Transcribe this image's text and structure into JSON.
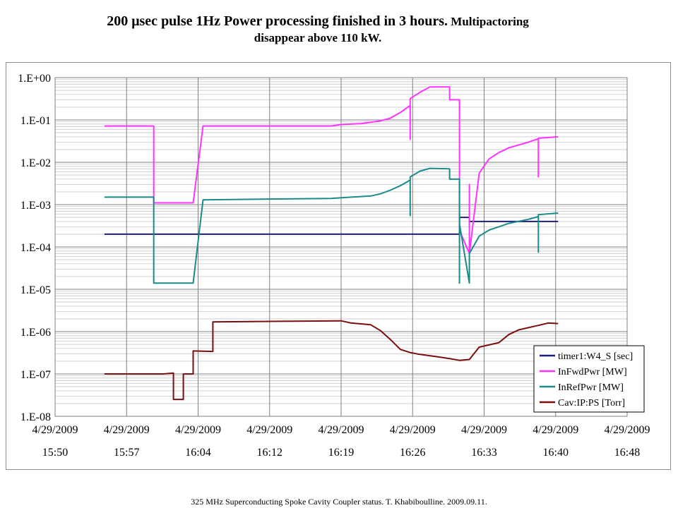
{
  "header": {
    "title_main": "200 μsec pulse 1Hz  Power processing finished in 3 hours.",
    "title_tail": " Multipactoring",
    "title_line2": "disappear above 110 kW."
  },
  "footer": {
    "text": "325 MHz Superconducting Spoke Cavity Coupler status. T. Khabiboulline. 2009.09.11."
  },
  "chart_data": {
    "type": "line",
    "title": "",
    "xlabel": "",
    "ylabel": "",
    "y_scale": "log",
    "ylim": [
      1e-08,
      1
    ],
    "y_ticks": [
      "1.E+00",
      "1.E-01",
      "1.E-02",
      "1.E-03",
      "1.E-04",
      "1.E-05",
      "1.E-06",
      "1.E-07",
      "1.E-08"
    ],
    "x_unit": "minutes",
    "xlim": [
      "2009-04-29 15:50",
      "2009-04-29 16:48"
    ],
    "x_ticks": [
      {
        "date": "4/29/2009",
        "time": "15:50"
      },
      {
        "date": "4/29/2009",
        "time": "15:57"
      },
      {
        "date": "4/29/2009",
        "time": "16:04"
      },
      {
        "date": "4/29/2009",
        "time": "16:12"
      },
      {
        "date": "4/29/2009",
        "time": "16:19"
      },
      {
        "date": "4/29/2009",
        "time": "16:26"
      },
      {
        "date": "4/29/2009",
        "time": "16:33"
      },
      {
        "date": "4/29/2009",
        "time": "16:40"
      },
      {
        "date": "4/29/2009",
        "time": "16:48"
      }
    ],
    "grid": true,
    "legend_position": "bottom-right",
    "series": [
      {
        "name": "timer1:W4_S [sec]",
        "color": "#1f1f7a",
        "points": [
          [
            "15:55",
            0.0002
          ],
          [
            "16:31",
            0.0002
          ],
          [
            "16:31",
            0.0005
          ],
          [
            "16:32",
            0.0005
          ],
          [
            "16:32",
            0.0004
          ],
          [
            "16:41",
            0.0004
          ]
        ]
      },
      {
        "name": "InFwdPwr [MW]",
        "color": "#ff33ff",
        "points": [
          [
            "15:55",
            0.072
          ],
          [
            "16:00",
            0.072
          ],
          [
            "16:00",
            0.068
          ],
          [
            "16:00",
            0.0011
          ],
          [
            "16:00",
            0.0011
          ],
          [
            "16:04",
            0.0011
          ],
          [
            "16:05",
            0.072
          ],
          [
            "16:18",
            0.072
          ],
          [
            "16:19",
            0.078
          ],
          [
            "16:21",
            0.082
          ],
          [
            "16:23",
            0.095
          ],
          [
            "16:24",
            0.11
          ],
          [
            "16:25",
            0.15
          ],
          [
            "16:26",
            0.22
          ],
          [
            "16:26",
            0.035
          ],
          [
            "16:26",
            0.32
          ],
          [
            "16:27",
            0.45
          ],
          [
            "16:28",
            0.6
          ],
          [
            "16:30",
            0.6
          ],
          [
            "16:30",
            0.3
          ],
          [
            "16:31",
            0.3
          ],
          [
            "16:31",
            0.00025
          ],
          [
            "16:32",
            7e-05
          ],
          [
            "16:32",
            0.003
          ],
          [
            "16:32",
            7e-05
          ],
          [
            "16:33",
            0.0055
          ],
          [
            "16:34",
            0.012
          ],
          [
            "16:35",
            0.017
          ],
          [
            "16:36",
            0.022
          ],
          [
            "16:38",
            0.03
          ],
          [
            "16:39",
            0.036
          ],
          [
            "16:39",
            0.0045
          ],
          [
            "16:39",
            0.037
          ],
          [
            "16:41",
            0.04
          ]
        ]
      },
      {
        "name": "InRefPwr [MW]",
        "color": "#1a8a8a",
        "points": [
          [
            "15:55",
            0.0015
          ],
          [
            "16:00",
            0.0015
          ],
          [
            "16:00",
            0.0014
          ],
          [
            "16:00",
            1.4e-05
          ],
          [
            "16:04",
            1.4e-05
          ],
          [
            "16:05",
            0.0013
          ],
          [
            "16:18",
            0.0014
          ],
          [
            "16:20",
            0.0015
          ],
          [
            "16:22",
            0.0016
          ],
          [
            "16:23",
            0.0018
          ],
          [
            "16:24",
            0.0022
          ],
          [
            "16:25",
            0.0028
          ],
          [
            "16:26",
            0.0038
          ],
          [
            "16:26",
            0.00055
          ],
          [
            "16:26",
            0.0045
          ],
          [
            "16:27",
            0.0062
          ],
          [
            "16:28",
            0.0072
          ],
          [
            "16:30",
            0.007
          ],
          [
            "16:30",
            0.004
          ],
          [
            "16:31",
            0.004
          ],
          [
            "16:31",
            1.4e-05
          ],
          [
            "16:31",
            0.00035
          ],
          [
            "16:32",
            1.4e-05
          ],
          [
            "16:32",
            7e-05
          ],
          [
            "16:33",
            0.00018
          ],
          [
            "16:34",
            0.00025
          ],
          [
            "16:35",
            0.0003
          ],
          [
            "16:36",
            0.00036
          ],
          [
            "16:38",
            0.00045
          ],
          [
            "16:39",
            0.00052
          ],
          [
            "16:39",
            7.5e-05
          ],
          [
            "16:39",
            0.00058
          ],
          [
            "16:41",
            0.00063
          ]
        ]
      },
      {
        "name": "Cav:IP:PS [Torr]",
        "color": "#7a0d0d",
        "points": [
          [
            "15:55",
            1e-07
          ],
          [
            "16:01",
            1e-07
          ],
          [
            "16:02",
            1.05e-07
          ],
          [
            "16:02",
            2.5e-08
          ],
          [
            "16:03",
            2.5e-08
          ],
          [
            "16:03",
            1e-07
          ],
          [
            "16:04",
            1e-07
          ],
          [
            "16:04",
            3.5e-07
          ],
          [
            "16:06",
            3.4e-07
          ],
          [
            "16:06",
            1.7e-06
          ],
          [
            "16:19",
            1.8e-06
          ],
          [
            "16:20",
            1.6e-06
          ],
          [
            "16:22",
            1.45e-06
          ],
          [
            "16:23",
            1.05e-06
          ],
          [
            "16:24",
            6.5e-07
          ],
          [
            "16:25",
            3.8e-07
          ],
          [
            "16:26",
            3.2e-07
          ],
          [
            "16:27",
            2.9e-07
          ],
          [
            "16:29",
            2.5e-07
          ],
          [
            "16:30",
            2.3e-07
          ],
          [
            "16:31",
            2.1e-07
          ],
          [
            "16:32",
            2.2e-07
          ],
          [
            "16:33",
            4.3e-07
          ],
          [
            "16:35",
            5.5e-07
          ],
          [
            "16:36",
            8.5e-07
          ],
          [
            "16:37",
            1.1e-06
          ],
          [
            "16:39",
            1.4e-06
          ],
          [
            "16:40",
            1.6e-06
          ],
          [
            "16:41",
            1.55e-06
          ]
        ]
      }
    ]
  }
}
